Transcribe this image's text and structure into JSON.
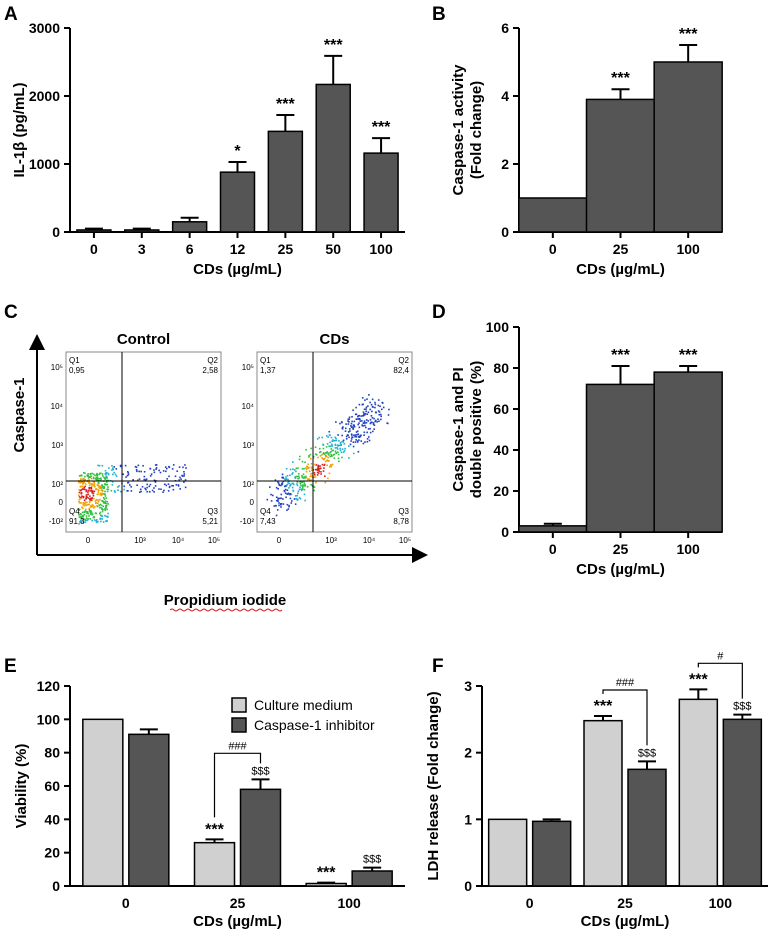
{
  "panels": {
    "A": "A",
    "B": "B",
    "C": "C",
    "D": "D",
    "E": "E",
    "F": "F"
  },
  "chart_data": [
    {
      "id": "A",
      "type": "bar",
      "categories": [
        "0",
        "3",
        "6",
        "12",
        "25",
        "50",
        "100"
      ],
      "values": [
        30,
        30,
        150,
        880,
        1480,
        2170,
        1160
      ],
      "errors": [
        20,
        20,
        60,
        150,
        240,
        420,
        220
      ],
      "significance": [
        "",
        "",
        "",
        "*",
        "***",
        "***",
        "***"
      ],
      "xlabel": "CDs (µg/mL)",
      "ylabel": "IL-1β (pg/mL)",
      "ylim": [
        0,
        3000
      ],
      "yticks": [
        0,
        1000,
        2000,
        3000
      ]
    },
    {
      "id": "B",
      "type": "bar",
      "categories": [
        "0",
        "25",
        "100"
      ],
      "values": [
        1.0,
        3.9,
        5.0
      ],
      "errors": [
        0,
        0.3,
        0.5
      ],
      "significance": [
        "",
        "***",
        "***"
      ],
      "xlabel": "CDs (µg/mL)",
      "ylabel_lines": [
        "Caspase-1 activity",
        "(Fold change)"
      ],
      "ylim": [
        0,
        6
      ],
      "yticks": [
        0,
        2,
        4,
        6
      ]
    },
    {
      "id": "D",
      "type": "bar",
      "categories": [
        "0",
        "25",
        "100"
      ],
      "values": [
        3,
        72,
        78
      ],
      "errors": [
        1,
        9,
        3
      ],
      "significance": [
        "",
        "***",
        "***"
      ],
      "xlabel": "CDs (µg/mL)",
      "ylabel_lines": [
        "Caspase-1 and PI",
        "double positive (%)"
      ],
      "ylim": [
        0,
        100
      ],
      "yticks": [
        0,
        20,
        40,
        60,
        80,
        100
      ]
    },
    {
      "id": "E",
      "type": "bar",
      "categories": [
        "0",
        "25",
        "100"
      ],
      "series": [
        {
          "name": "Culture medium",
          "values": [
            100,
            26,
            1.5
          ],
          "errors": [
            0,
            2,
            0.5
          ],
          "significance": [
            "",
            "***",
            "***"
          ]
        },
        {
          "name": "Caspase-1 inhibitor",
          "values": [
            91,
            58,
            9
          ],
          "errors": [
            3,
            6,
            2
          ],
          "significance": [
            "",
            "$$$",
            "$$$"
          ]
        }
      ],
      "comparisons": [
        {
          "group": 1,
          "label": "###"
        }
      ],
      "xlabel": "CDs (µg/mL)",
      "ylabel": "Viability (%)",
      "ylim": [
        0,
        120
      ],
      "yticks": [
        0,
        20,
        40,
        60,
        80,
        100,
        120
      ],
      "legend": "top-right"
    },
    {
      "id": "F",
      "type": "bar",
      "categories": [
        "0",
        "25",
        "100"
      ],
      "series": [
        {
          "name": "Culture medium",
          "values": [
            1.0,
            2.48,
            2.8
          ],
          "errors": [
            0,
            0.07,
            0.15
          ],
          "significance": [
            "",
            "***",
            "***"
          ]
        },
        {
          "name": "Caspase-1 inhibitor",
          "values": [
            0.97,
            1.75,
            2.5
          ],
          "errors": [
            0.03,
            0.12,
            0.07
          ],
          "significance": [
            "",
            "$$$",
            "$$$"
          ]
        }
      ],
      "comparisons": [
        {
          "group": 1,
          "label": "###"
        },
        {
          "group": 2,
          "label": "#"
        }
      ],
      "xlabel": "CDs (µg/mL)",
      "ylabel": "LDH release (Fold change)",
      "ylim": [
        0,
        3
      ],
      "yticks": [
        0,
        1,
        2,
        3
      ]
    }
  ],
  "flow": {
    "ylabel": "Caspase-1",
    "xlabel": "Propidium iodide",
    "plots": [
      {
        "title": "Control",
        "q1": "Q1",
        "q1v": "0,95",
        "q2": "Q2",
        "q2v": "2,58",
        "q3": "Q3",
        "q3v": "5,21",
        "q4": "Q4",
        "q4v": "91,3"
      },
      {
        "title": "CDs",
        "q1": "Q1",
        "q1v": "1,37",
        "q2": "Q2",
        "q2v": "82,4",
        "q3": "Q3",
        "q3v": "8,78",
        "q4": "Q4",
        "q4v": "7,43"
      }
    ],
    "yticks": [
      "10⁵",
      "10⁴",
      "10³",
      "10²",
      "0",
      "-10²"
    ],
    "xticks": [
      "0",
      "10³",
      "10⁴",
      "10⁵"
    ]
  }
}
